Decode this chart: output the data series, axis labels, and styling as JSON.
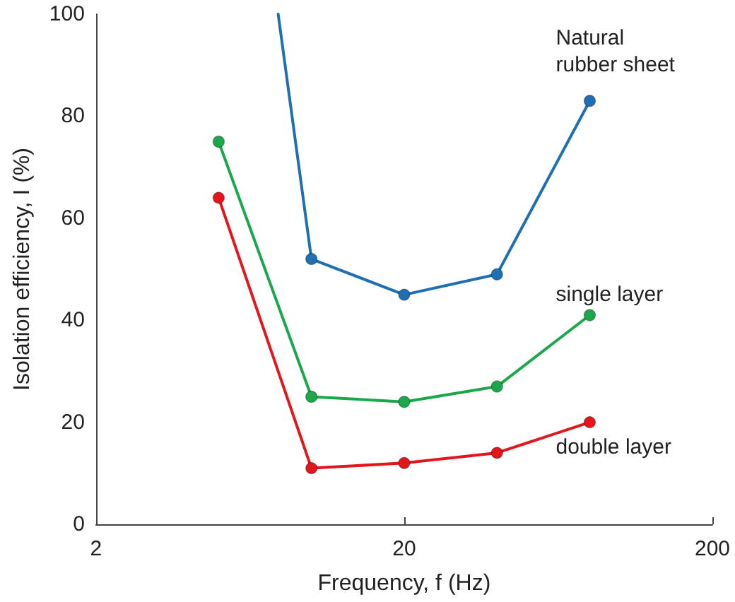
{
  "chart_data": {
    "type": "line",
    "xlabel": "Frequency, f (Hz)",
    "ylabel": "Isolation efficiency, I (%)",
    "log": "x",
    "xlim": [
      2,
      200
    ],
    "xticks": [
      2,
      20,
      200
    ],
    "ylim": [
      0,
      100
    ],
    "yticks": [
      0,
      20,
      40,
      60,
      80,
      100
    ],
    "grid": false,
    "legend": false,
    "marker": "circle",
    "line_style": "solid",
    "series": [
      {
        "name": "Natural rubber sheet",
        "color": "#1f6fb5",
        "x": [
          7.8,
          10,
          20,
          40,
          80
        ],
        "values": [
          100,
          52,
          45,
          49,
          83
        ]
      },
      {
        "name": "single layer",
        "color": "#1aa84a",
        "x": [
          5,
          10,
          20,
          40,
          80
        ],
        "values": [
          75,
          25,
          24,
          27,
          41
        ]
      },
      {
        "name": "double layer",
        "color": "#e4161b",
        "x": [
          5,
          10,
          20,
          40,
          80
        ],
        "values": [
          64,
          11,
          12,
          14,
          20
        ]
      }
    ]
  }
}
